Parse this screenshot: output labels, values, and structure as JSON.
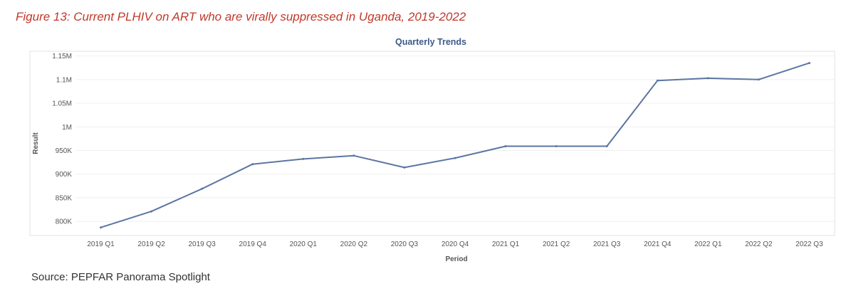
{
  "figure": {
    "caption": "Figure 13: Current PLHIV on ART who are virally suppressed in Uganda, 2019-2022",
    "source": "Source: PEPFAR Panorama Spotlight"
  },
  "chart_data": {
    "type": "line",
    "title": "Quarterly Trends",
    "xlabel": "Period",
    "ylabel": "Result",
    "categories": [
      "2019 Q1",
      "2019 Q2",
      "2019 Q3",
      "2019 Q4",
      "2020 Q1",
      "2020 Q2",
      "2020 Q3",
      "2020 Q4",
      "2021 Q1",
      "2021 Q2",
      "2021 Q3",
      "2021 Q4",
      "2022 Q1",
      "2022 Q2",
      "2022 Q3"
    ],
    "series": [
      {
        "values": [
          787000,
          821000,
          869000,
          921000,
          932000,
          939000,
          914000,
          934000,
          959000,
          959000,
          959000,
          1098000,
          1103000,
          1100000,
          1135000
        ]
      }
    ],
    "ylim": [
      770000,
      1160000
    ],
    "yticks": [
      800000,
      850000,
      900000,
      950000,
      1000000,
      1050000,
      1100000,
      1150000
    ],
    "ytick_labels": [
      "800K",
      "850K",
      "900K",
      "950K",
      "1M",
      "1.05M",
      "1.1M",
      "1.15M"
    ],
    "grid": true,
    "colors": {
      "line": "#5b76a3",
      "title": "#3d5a8a",
      "caption": "#c0392b"
    }
  }
}
